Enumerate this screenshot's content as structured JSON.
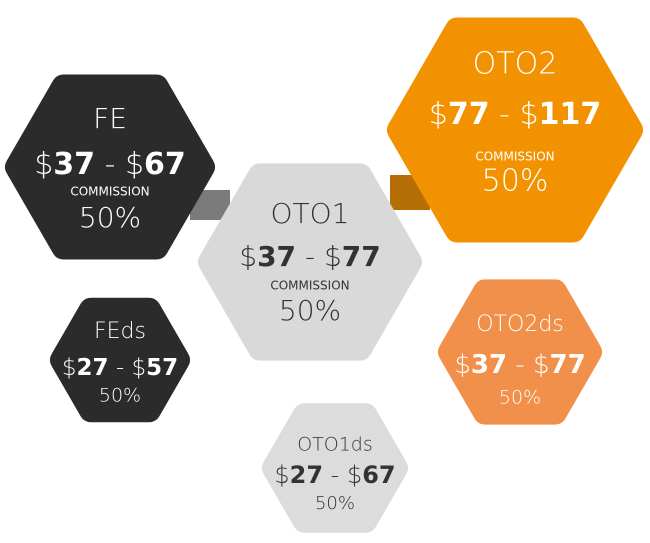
{
  "nodes": [
    {
      "label": "FE",
      "price": "$37 - $67",
      "commission": "COMMISSION",
      "percent": "50%"
    },
    {
      "label": "OTO2",
      "price": "$77 - $117",
      "commission": "COMMISSION",
      "percent": "50%"
    },
    {
      "label": "OTO1",
      "price": "$37 - $77",
      "commission": "COMMISSION",
      "percent": "50%"
    },
    {
      "label": "FEds",
      "price": "$27 - $57",
      "percent": "50%"
    },
    {
      "label": "OTO2ds",
      "price": "$37 - $77",
      "percent": "50%"
    },
    {
      "label": "OTO1ds",
      "price": "$27 - $67",
      "percent": "50%"
    }
  ]
}
